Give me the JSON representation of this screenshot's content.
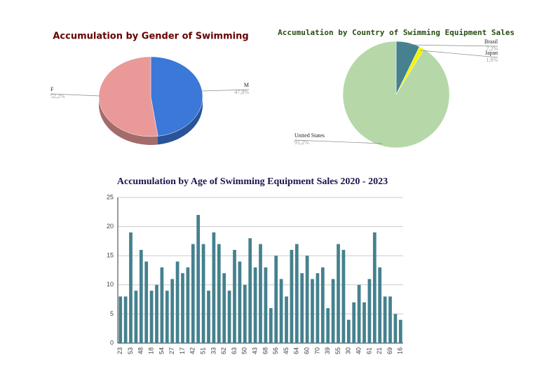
{
  "chart_data": [
    {
      "type": "pie3d",
      "title": "Accumulation by Gender of Swimming",
      "categories": [
        "M",
        "F"
      ],
      "values": [
        47.8,
        52.2
      ],
      "value_labels": [
        "47,8%",
        "52,2%"
      ],
      "colors": [
        "#3c78d8",
        "#ea9999"
      ]
    },
    {
      "type": "pie",
      "title": "Accumulation by Country of Swimming Equipment Sales",
      "categories": [
        "Brasil",
        "Japan",
        "United States"
      ],
      "values": [
        7.2,
        1.6,
        91.2
      ],
      "value_labels": [
        "7,2%",
        "1,6%",
        "91,2%"
      ],
      "colors": [
        "#45818e",
        "#f1f50a",
        "#b6d7a8"
      ]
    },
    {
      "type": "bar",
      "title": "Accumulation by Age of Swimming Equipment Sales 2020 - 2023",
      "categories": [
        "23",
        null,
        "53",
        null,
        "48",
        null,
        "18",
        null,
        "54",
        null,
        "27",
        null,
        "17",
        null,
        "42",
        null,
        "51",
        null,
        "33",
        null,
        "62",
        null,
        "63",
        null,
        "50",
        null,
        "43",
        null,
        "68",
        null,
        "56",
        null,
        "45",
        null,
        "64",
        null,
        "60",
        null,
        "70",
        null,
        "39",
        null,
        "55",
        null,
        "30",
        null,
        "40",
        null,
        "61",
        null,
        "21",
        null,
        "69",
        null,
        "16"
      ],
      "values": [
        8,
        8,
        19,
        9,
        16,
        14,
        9,
        10,
        13,
        9,
        11,
        14,
        12,
        13,
        17,
        22,
        17,
        9,
        19,
        17,
        12,
        9,
        16,
        14,
        10,
        18,
        13,
        17,
        13,
        6,
        15,
        11,
        8,
        16,
        17,
        12,
        15,
        11,
        12,
        13,
        6,
        11,
        17,
        16,
        4,
        7,
        10,
        7,
        11,
        19,
        13,
        8,
        8,
        5,
        4
      ],
      "color": "#45818e",
      "ylim": [
        0,
        25
      ],
      "yticks": [
        0,
        5,
        10,
        15,
        20,
        25
      ],
      "grid": true
    }
  ]
}
